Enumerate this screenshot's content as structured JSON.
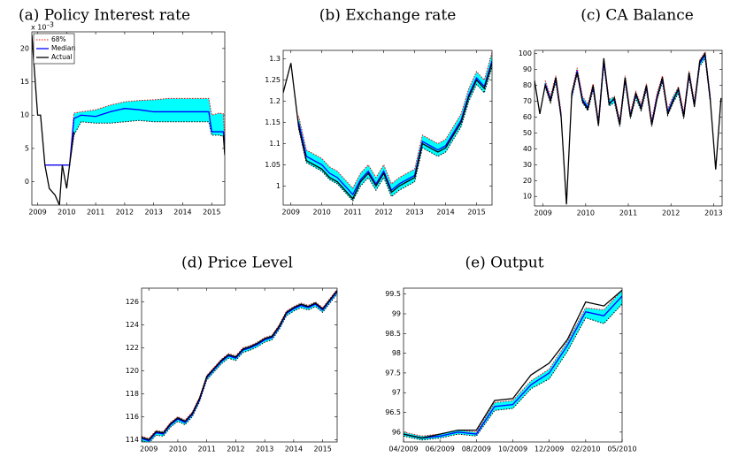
{
  "chart_data": [
    {
      "type": "line",
      "title": "(a) Policy Interest rate",
      "legend": "upper left",
      "y_exponent": {
        "base": "x 10",
        "exponent": "-3"
      },
      "x": [
        2008.8,
        2009,
        2009.1,
        2009.25,
        2009.4,
        2009.5,
        2009.6,
        2009.75,
        2009.85,
        2010,
        2010.1,
        2010.25,
        2010.5,
        2011,
        2011.5,
        2012,
        2012.5,
        2013,
        2013.5,
        2014,
        2014.5,
        2014.9,
        2015,
        2015.25,
        2015.4,
        2015.45
      ],
      "xlim": [
        2008.8,
        2015.45
      ],
      "xticks": [
        2009,
        2010,
        2011,
        2012,
        2013,
        2014,
        2015
      ],
      "ylim": [
        -3.5,
        22.5
      ],
      "yticks": [
        0,
        5,
        10,
        15,
        20
      ],
      "series": [
        {
          "name": "68%",
          "color": "#ff0000",
          "fill": "#00ffff",
          "upper": [
            null,
            null,
            null,
            2.5,
            2.5,
            2.5,
            2.5,
            2.5,
            2.5,
            2.5,
            2.5,
            10.3,
            10.5,
            10.8,
            11.5,
            12,
            12.2,
            12.3,
            12.5,
            12.5,
            12.5,
            12.5,
            10,
            10.3,
            10.2,
            6
          ],
          "lower": [
            null,
            null,
            null,
            2.5,
            2.5,
            2.5,
            2.5,
            2.5,
            2.5,
            2.5,
            2.5,
            7,
            9,
            8.8,
            8.8,
            9,
            9.2,
            9,
            9,
            9,
            9,
            9,
            7,
            7,
            6.8,
            4.5
          ]
        },
        {
          "name": "Median",
          "color": "#0000ff",
          "values": [
            null,
            null,
            null,
            2.5,
            2.5,
            2.5,
            2.5,
            2.5,
            2.5,
            2.5,
            2.5,
            9.5,
            10,
            9.8,
            10.5,
            11,
            10.8,
            10.5,
            10.5,
            10.5,
            10.5,
            10.5,
            7.5,
            7.5,
            7.5,
            5.5
          ]
        },
        {
          "name": "Actual",
          "color": "#000000",
          "values": [
            22,
            10,
            10,
            2.5,
            -1,
            -1.5,
            -2,
            -3.5,
            2.5,
            -1,
            2.5,
            7.5,
            null,
            null,
            null,
            null,
            null,
            null,
            null,
            null,
            null,
            null,
            null,
            null,
            7,
            4
          ]
        }
      ]
    },
    {
      "type": "line",
      "title": "(b) Exchange rate",
      "x": [
        2008.75,
        2009,
        2009.25,
        2009.5,
        2009.75,
        2010,
        2010.25,
        2010.5,
        2010.75,
        2011,
        2011.25,
        2011.5,
        2011.75,
        2012,
        2012.25,
        2012.5,
        2012.75,
        2013,
        2013.25,
        2013.5,
        2013.75,
        2014,
        2014.25,
        2014.5,
        2014.75,
        2015,
        2015.25,
        2015.5
      ],
      "xlim": [
        2008.75,
        2015.5
      ],
      "xticks": [
        2009,
        2010,
        2011,
        2012,
        2013,
        2014,
        2015
      ],
      "ylim": [
        0.955,
        1.32
      ],
      "yticks": [
        1,
        1.05,
        1.1,
        1.15,
        1.2,
        1.25,
        1.3
      ],
      "series": [
        {
          "color": "#ff0000",
          "fill": "#00ffff",
          "upper": [
            null,
            null,
            1.165,
            1.085,
            1.075,
            1.065,
            1.045,
            1.035,
            1.015,
            0.995,
            1.03,
            1.05,
            1.02,
            1.05,
            1.005,
            1.02,
            1.03,
            1.04,
            1.12,
            1.11,
            1.1,
            1.11,
            1.14,
            1.17,
            1.23,
            1.27,
            1.25,
            1.315
          ],
          "lower": [
            null,
            null,
            1.135,
            1.055,
            1.045,
            1.035,
            1.015,
            1.005,
            0.985,
            0.965,
            1.0,
            1.02,
            0.99,
            1.02,
            0.975,
            0.99,
            1.0,
            1.01,
            1.09,
            1.08,
            1.07,
            1.08,
            1.11,
            1.14,
            1.2,
            1.24,
            1.22,
            1.28
          ]
        },
        {
          "color": "#0000ff",
          "values": [
            null,
            null,
            1.15,
            1.07,
            1.06,
            1.05,
            1.03,
            1.02,
            1.0,
            0.98,
            1.015,
            1.035,
            1.005,
            1.035,
            0.99,
            1.005,
            1.015,
            1.025,
            1.105,
            1.095,
            1.085,
            1.095,
            1.125,
            1.155,
            1.215,
            1.255,
            1.235,
            1.295
          ]
        },
        {
          "color": "#000000",
          "values": [
            1.22,
            1.29,
            1.14,
            1.06,
            1.05,
            1.04,
            1.02,
            1.01,
            0.99,
            0.97,
            1.01,
            1.03,
            1.0,
            1.03,
            0.985,
            1.0,
            1.01,
            1.02,
            1.1,
            1.09,
            1.08,
            1.09,
            1.12,
            1.15,
            1.21,
            1.25,
            1.23,
            1.29
          ]
        }
      ]
    },
    {
      "type": "line",
      "title": "(c) CA Balance",
      "x": [
        2008.8,
        2008.925,
        2009.05,
        2009.175,
        2009.3,
        2009.425,
        2009.55,
        2009.675,
        2009.8,
        2009.925,
        2010.05,
        2010.175,
        2010.3,
        2010.425,
        2010.55,
        2010.675,
        2010.8,
        2010.925,
        2011.05,
        2011.175,
        2011.3,
        2011.425,
        2011.55,
        2011.675,
        2011.8,
        2011.925,
        2012.05,
        2012.175,
        2012.3,
        2012.425,
        2012.55,
        2012.675,
        2012.8,
        2012.925,
        2013.05,
        2013.175
      ],
      "xlim": [
        2008.8,
        2013.2
      ],
      "xticks": [
        2009,
        2010,
        2011,
        2012,
        2013
      ],
      "ylim": [
        4,
        102
      ],
      "yticks": [
        10,
        20,
        30,
        40,
        50,
        60,
        70,
        80,
        90,
        100
      ],
      "series": [
        {
          "color": "#ff0000",
          "fill": "#00ffff",
          "upper": [
            null,
            null,
            83,
            73,
            86,
            63,
            null,
            76,
            91,
            73,
            68,
            81,
            58,
            97,
            71,
            73,
            58,
            86,
            63,
            76,
            68,
            81,
            58,
            75,
            86,
            65,
            73,
            79,
            63,
            89,
            70,
            96,
            101,
            73,
            null,
            null
          ],
          "lower": [
            null,
            null,
            79,
            69,
            82,
            59,
            null,
            72,
            87,
            69,
            64,
            77,
            54,
            93,
            67,
            69,
            54,
            82,
            59,
            72,
            64,
            77,
            54,
            71,
            82,
            61,
            69,
            75,
            59,
            85,
            66,
            92,
            97,
            69,
            null,
            null
          ]
        },
        {
          "color": "#0000ff",
          "values": [
            null,
            null,
            81,
            71,
            84,
            61,
            null,
            74,
            89,
            71,
            66,
            79,
            56,
            95,
            69,
            71,
            56,
            84,
            61,
            74,
            66,
            79,
            56,
            73,
            84,
            63,
            71,
            77,
            61,
            87,
            68,
            94,
            99,
            71,
            null,
            null
          ]
        },
        {
          "color": "#000000",
          "values": [
            83,
            62,
            80,
            70,
            85,
            60,
            5,
            75,
            88,
            70,
            65,
            80,
            55,
            97,
            68,
            72,
            55,
            85,
            60,
            75,
            65,
            80,
            55,
            72,
            85,
            62,
            70,
            78,
            60,
            88,
            67,
            95,
            100,
            70,
            27,
            72
          ]
        }
      ]
    },
    {
      "type": "line",
      "title": "(d) Price Level",
      "x": [
        2008.75,
        2009,
        2009.25,
        2009.5,
        2009.75,
        2010,
        2010.25,
        2010.5,
        2010.75,
        2011,
        2011.25,
        2011.5,
        2011.75,
        2012,
        2012.25,
        2012.5,
        2012.75,
        2013,
        2013.25,
        2013.5,
        2013.75,
        2014,
        2014.25,
        2014.5,
        2014.75,
        2015,
        2015.25,
        2015.5
      ],
      "xlim": [
        2008.75,
        2015.5
      ],
      "xticks": [
        2009,
        2010,
        2011,
        2012,
        2013,
        2014,
        2015
      ],
      "ylim": [
        113.8,
        127.2
      ],
      "yticks": [
        114,
        116,
        118,
        120,
        122,
        124,
        126
      ],
      "series": [
        {
          "color": "#ff0000",
          "fill": "#00ffff",
          "upper": [
            114.3,
            114.1,
            114.8,
            114.7,
            115.5,
            116.0,
            115.7,
            116.4,
            117.7,
            119.6,
            120.3,
            121.0,
            121.5,
            121.3,
            122.0,
            122.2,
            122.5,
            122.9,
            123.1,
            124.0,
            125.2,
            125.6,
            125.9,
            125.7,
            126.0,
            125.5,
            126.3,
            127.1
          ],
          "lower": [
            113.9,
            113.7,
            114.4,
            114.3,
            115.1,
            115.6,
            115.3,
            116.0,
            117.3,
            119.2,
            119.9,
            120.6,
            121.1,
            120.9,
            121.6,
            121.8,
            122.1,
            122.5,
            122.7,
            123.6,
            124.8,
            125.2,
            125.5,
            125.3,
            125.6,
            125.1,
            125.9,
            126.7
          ]
        },
        {
          "color": "#0000ff",
          "values": [
            114.1,
            113.9,
            114.6,
            114.5,
            115.3,
            115.8,
            115.5,
            116.2,
            117.5,
            119.4,
            120.1,
            120.8,
            121.3,
            121.1,
            121.8,
            122.0,
            122.3,
            122.7,
            122.9,
            123.8,
            125.0,
            125.4,
            125.7,
            125.5,
            125.8,
            125.3,
            126.1,
            126.9
          ]
        },
        {
          "color": "#000000",
          "values": [
            114.2,
            114.0,
            114.7,
            114.6,
            115.4,
            115.9,
            115.6,
            116.3,
            117.6,
            119.5,
            120.2,
            120.9,
            121.4,
            121.2,
            121.9,
            122.1,
            122.4,
            122.8,
            123.0,
            123.9,
            125.1,
            125.5,
            125.8,
            125.6,
            125.9,
            125.4,
            126.2,
            127.0
          ]
        }
      ]
    },
    {
      "type": "line",
      "title": "(e) Output",
      "categories": [
        "04/2009",
        null,
        "06/2009",
        null,
        "08/2009",
        null,
        "10/2009",
        null,
        "12/2009",
        null,
        "02/2010",
        null,
        "05/2010"
      ],
      "ylim": [
        95.75,
        99.65
      ],
      "yticks": [
        96,
        96.5,
        97,
        97.5,
        98,
        98.5,
        99,
        99.5
      ],
      "series": [
        {
          "color": "#ff0000",
          "fill": "#00ffff",
          "upper": [
            96.0,
            95.9,
            95.95,
            96.05,
            96.0,
            96.75,
            96.8,
            97.3,
            97.6,
            98.3,
            99.15,
            99.1,
            99.6
          ],
          "lower": [
            95.9,
            95.8,
            95.85,
            95.95,
            95.9,
            96.55,
            96.6,
            97.1,
            97.35,
            98.05,
            98.9,
            98.75,
            99.25
          ]
        },
        {
          "color": "#0000ff",
          "values": [
            95.95,
            95.85,
            95.9,
            96.0,
            95.95,
            96.65,
            96.7,
            97.2,
            97.5,
            98.2,
            99.05,
            98.95,
            99.45
          ]
        },
        {
          "color": "#000000",
          "values": [
            95.95,
            95.85,
            95.95,
            96.05,
            96.05,
            96.8,
            96.85,
            97.45,
            97.75,
            98.35,
            99.3,
            99.2,
            99.6
          ]
        }
      ]
    }
  ]
}
